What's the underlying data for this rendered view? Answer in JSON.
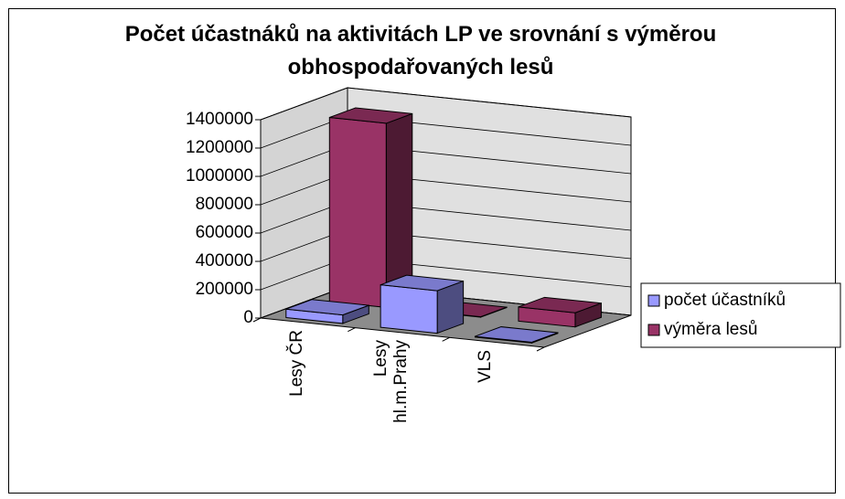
{
  "chart_data": {
    "type": "bar3d",
    "title": "Počet účastnáků na aktivitách LP ve srovnání s výměrou obhospodařovaných lesů",
    "categories": [
      "Lesy ČR",
      "Lesy hl.m.Prahy",
      "VLS"
    ],
    "series": [
      {
        "name": "počet účastníků",
        "color": "#9999ff",
        "values": [
          60000,
          300000,
          5000
        ]
      },
      {
        "name": "výměra lesů",
        "color": "#993366",
        "values": [
          1300000,
          3000,
          100000
        ]
      }
    ],
    "ylim": [
      0,
      1400000
    ],
    "yticks": [
      0,
      200000,
      400000,
      600000,
      800000,
      1000000,
      1200000,
      1400000
    ],
    "grid": true,
    "legend": "right"
  }
}
